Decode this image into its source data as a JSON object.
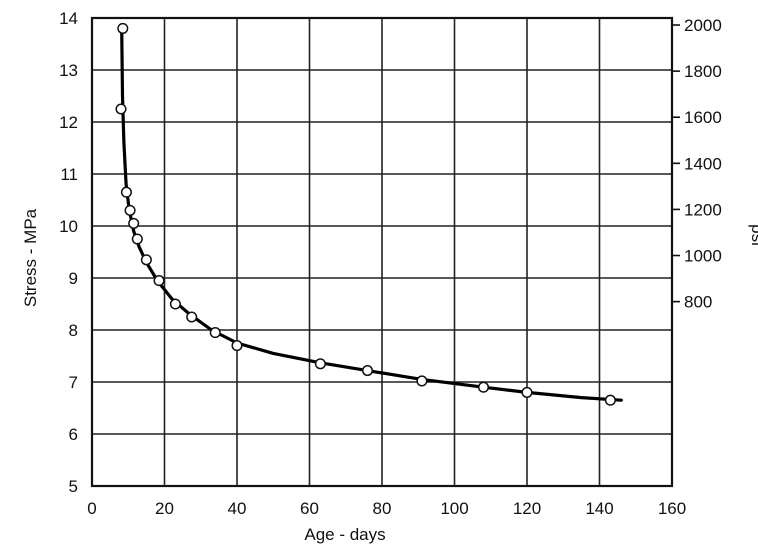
{
  "chart_data": {
    "type": "scatter",
    "xlabel": "Age - days",
    "ylabel": "Stress - MPa",
    "y2label": "psi",
    "xlim": [
      0,
      160
    ],
    "ylim": [
      5,
      14
    ],
    "y2lim": [
      0,
      2030.5
    ],
    "grid": true,
    "x_ticks": [
      0,
      20,
      40,
      60,
      80,
      100,
      120,
      140,
      160
    ],
    "y_ticks": [
      5,
      6,
      7,
      8,
      9,
      10,
      11,
      12,
      13,
      14
    ],
    "y2_ticks": [
      800,
      1000,
      1200,
      1400,
      1600,
      1800,
      2000
    ],
    "series": [
      {
        "points": [
          [
            8.5,
            13.8
          ],
          [
            8,
            12.25
          ],
          [
            9.5,
            10.65
          ],
          [
            10.5,
            10.3
          ],
          [
            11.5,
            10.05
          ],
          [
            12.5,
            9.75
          ],
          [
            15,
            9.35
          ],
          [
            18.5,
            8.95
          ],
          [
            23,
            8.5
          ],
          [
            27.5,
            8.25
          ],
          [
            34,
            7.95
          ],
          [
            40,
            7.7
          ],
          [
            63,
            7.35
          ],
          [
            76,
            7.22
          ],
          [
            91,
            7.02
          ],
          [
            108,
            6.9
          ],
          [
            120,
            6.8
          ],
          [
            143,
            6.65
          ]
        ]
      }
    ],
    "fit_curve": [
      [
        8.2,
        13.8
      ],
      [
        8.4,
        12.5
      ],
      [
        8.8,
        11.6
      ],
      [
        9.4,
        10.8
      ],
      [
        10.3,
        10.3
      ],
      [
        11.5,
        9.9
      ],
      [
        13,
        9.6
      ],
      [
        15,
        9.3
      ],
      [
        18,
        8.95
      ],
      [
        22,
        8.6
      ],
      [
        27,
        8.3
      ],
      [
        33,
        8.0
      ],
      [
        40,
        7.75
      ],
      [
        50,
        7.55
      ],
      [
        63,
        7.37
      ],
      [
        76,
        7.22
      ],
      [
        91,
        7.05
      ],
      [
        108,
        6.9
      ],
      [
        120,
        6.8
      ],
      [
        135,
        6.7
      ],
      [
        146,
        6.65
      ]
    ]
  }
}
